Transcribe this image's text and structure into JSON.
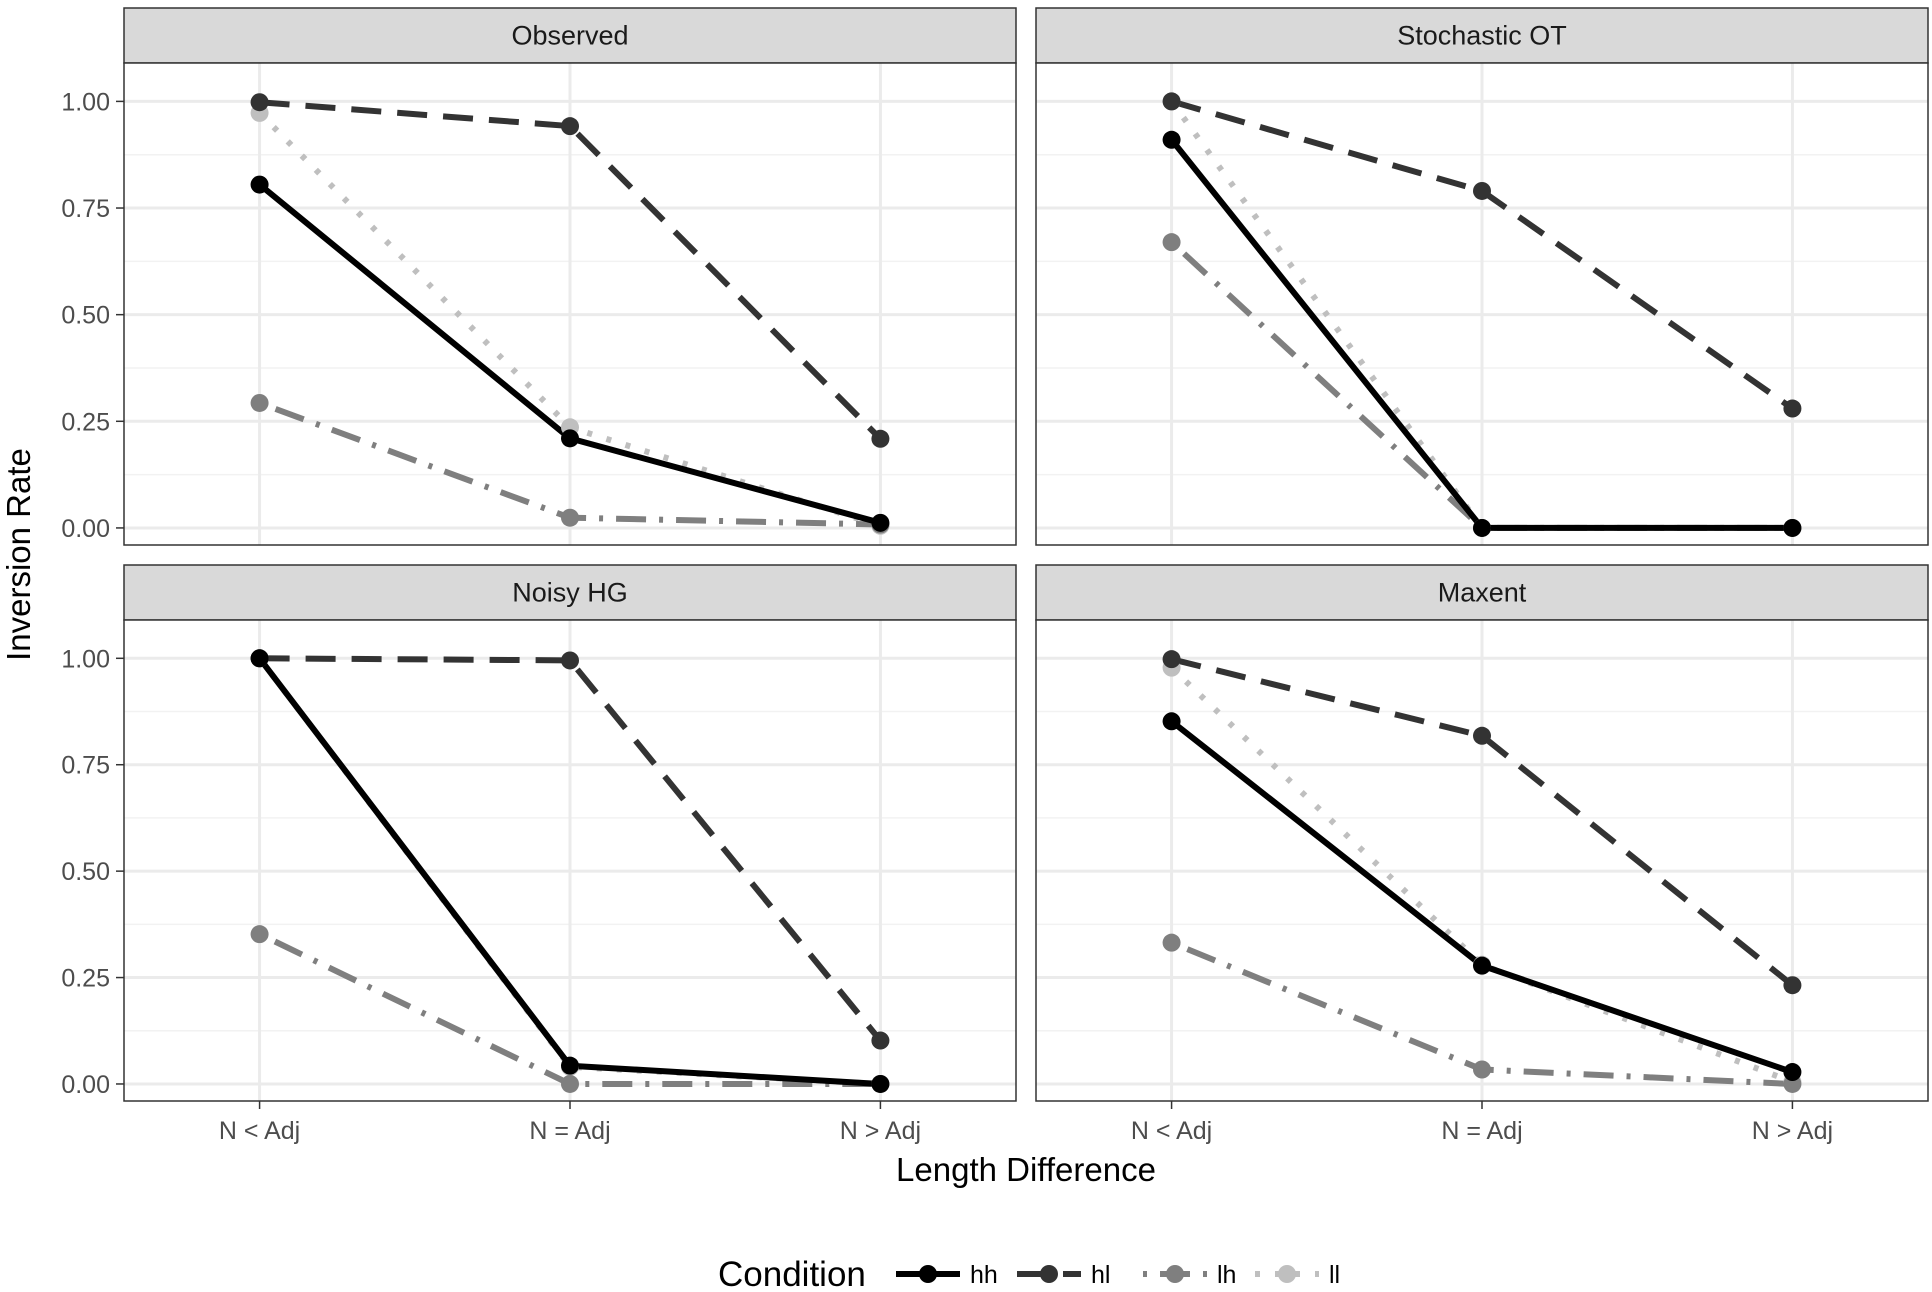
{
  "chart_data": {
    "type": "line",
    "layout": "facet-grid-2x2",
    "xlabel": "Length Difference",
    "ylabel": "Inversion Rate",
    "categories": [
      "N < Adj",
      "N = Adj",
      "N > Adj"
    ],
    "yticks": [
      "0.00",
      "0.25",
      "0.50",
      "0.75",
      "1.00"
    ],
    "ylim": [
      -0.04,
      1.09
    ],
    "grid": true,
    "legend": {
      "title": "Condition",
      "placement": "bottom",
      "entries": [
        "hh",
        "hl",
        "lh",
        "ll"
      ]
    },
    "series_styles": {
      "hh": {
        "color": "#000000",
        "dash": "solid"
      },
      "hl": {
        "color": "#333333",
        "dash": "dashed"
      },
      "lh": {
        "color": "#7f7f7f",
        "dash": "dotdash"
      },
      "ll": {
        "color": "#bfbfbf",
        "dash": "dotted"
      }
    },
    "panels": [
      {
        "title": "Observed",
        "series": [
          {
            "name": "hh",
            "values": [
              0.805,
              0.21,
              0.012
            ]
          },
          {
            "name": "hl",
            "values": [
              0.998,
              0.942,
              0.209
            ]
          },
          {
            "name": "lh",
            "values": [
              0.293,
              0.024,
              0.008
            ]
          },
          {
            "name": "ll",
            "values": [
              0.973,
              0.236,
              0.005
            ]
          }
        ]
      },
      {
        "title": "Stochastic OT",
        "series": [
          {
            "name": "hh",
            "values": [
              0.91,
              0.0,
              0.0
            ]
          },
          {
            "name": "hl",
            "values": [
              1.0,
              0.79,
              0.28
            ]
          },
          {
            "name": "lh",
            "values": [
              0.67,
              0.0,
              0.0
            ]
          },
          {
            "name": "ll",
            "values": [
              1.0,
              0.0,
              0.0
            ]
          }
        ]
      },
      {
        "title": "Noisy HG",
        "series": [
          {
            "name": "hh",
            "values": [
              1.0,
              0.043,
              0.0
            ]
          },
          {
            "name": "hl",
            "values": [
              1.0,
              0.995,
              0.102
            ]
          },
          {
            "name": "lh",
            "values": [
              0.352,
              0.0,
              0.0
            ]
          },
          {
            "name": "ll",
            "values": [
              1.0,
              0.04,
              0.0
            ]
          }
        ]
      },
      {
        "title": "Maxent",
        "series": [
          {
            "name": "hh",
            "values": [
              0.852,
              0.278,
              0.028
            ]
          },
          {
            "name": "hl",
            "values": [
              0.998,
              0.818,
              0.232
            ]
          },
          {
            "name": "lh",
            "values": [
              0.332,
              0.034,
              0.0
            ]
          },
          {
            "name": "ll",
            "values": [
              0.978,
              0.28,
              0.005
            ]
          }
        ]
      }
    ]
  }
}
